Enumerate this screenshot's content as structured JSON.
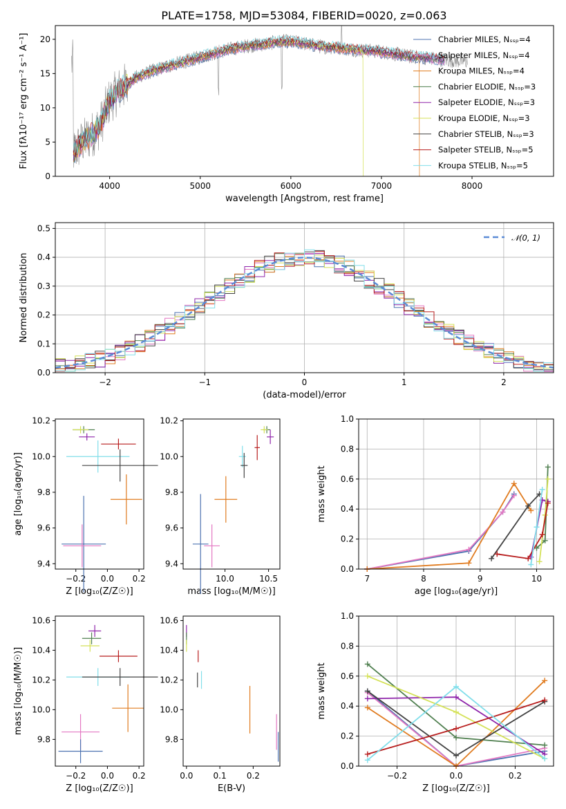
{
  "chart_data": [
    {
      "type": "line",
      "title": "PLATE=1758, MJD=53084, FIBERID=0020, z=0.063",
      "xlabel": "wavelength [Angstrom, rest frame]",
      "ylabel": "Flux [fλ10⁻¹⁷ erg cm⁻² s⁻¹ A⁻¹]",
      "xlim": [
        3400,
        8900
      ],
      "ylim": [
        0,
        22
      ],
      "xticks": [
        4000,
        5000,
        6000,
        7000,
        8000
      ],
      "yticks": [
        0,
        5,
        10,
        15,
        20
      ],
      "legend_position": "top-right",
      "continuum": {
        "x": [
          3600,
          3700,
          3800,
          3900,
          3950,
          4000,
          4100,
          4200,
          4300,
          4400,
          4500,
          4700,
          4900,
          5100,
          5300,
          5500,
          5700,
          5900,
          6100,
          6300,
          6500,
          6700,
          6900,
          7100,
          7300,
          7500,
          7700,
          7900,
          8100,
          8300,
          8500
        ],
        "y": [
          3.5,
          5.0,
          6.0,
          7.5,
          9.5,
          11.0,
          12.5,
          13.5,
          14.5,
          15.0,
          15.5,
          16.3,
          17.0,
          17.8,
          18.5,
          19.0,
          19.3,
          19.7,
          19.5,
          19.0,
          18.8,
          18.5,
          18.3,
          18.0,
          17.5,
          17.3,
          17.0,
          16.8,
          16.5,
          16.3,
          16.5
        ]
      },
      "series": [
        {
          "name": "Chabrier MILES, Nₛₛₚ=4",
          "color": "#4c72b0"
        },
        {
          "name": "Salpeter MILES, Nₛₛₚ=4",
          "color": "#e377c2"
        },
        {
          "name": "Kroupa MILES, Nₛₛₚ=4",
          "color": "#e07b1f"
        },
        {
          "name": "Chabrier ELODIE, Nₛₛₚ=3",
          "color": "#4f7f4f"
        },
        {
          "name": "Salpeter ELODIE, Nₛₛₚ=3",
          "color": "#8e24aa"
        },
        {
          "name": "Kroupa ELODIE, Nₛₛₚ=3",
          "color": "#d4e157"
        },
        {
          "name": "Chabrier STELIB, Nₛₛₚ=3",
          "color": "#424242"
        },
        {
          "name": "Salpeter STELIB, Nₛₛₚ=5",
          "color": "#b71c1c"
        },
        {
          "name": "Kroupa STELIB, Nₛₛₚ=5",
          "color": "#80deea"
        }
      ]
    },
    {
      "type": "line",
      "xlabel": "(data-model)/error",
      "ylabel": "Normed distribution",
      "xlim": [
        -2.5,
        2.5
      ],
      "ylim": [
        0,
        0.52
      ],
      "xticks": [
        -2,
        -1,
        0,
        1,
        2
      ],
      "yticks": [
        0.0,
        0.1,
        0.2,
        0.3,
        0.4,
        0.5
      ],
      "grid": true,
      "legend": "𝒩(0, 1)",
      "legend_position": "top-right",
      "gaussian": {
        "mean": 0,
        "sigma": 1,
        "color": "#5b8bd6"
      }
    },
    {
      "type": "scatter",
      "xlabel": "Z [log₁₀(Z/Z☉)]",
      "ylabel": "age  [log₁₀(age/yr)]",
      "xlim": [
        -0.33,
        0.23
      ],
      "ylim": [
        9.37,
        10.21
      ],
      "xticks": [
        -0.2,
        0.0,
        0.2
      ],
      "yticks": [
        9.4,
        9.6,
        9.8,
        10.0,
        10.2
      ],
      "points": [
        {
          "x": -0.15,
          "y": 10.15,
          "xerr": 0.07,
          "yerr": 0.02,
          "c": "#4f7f4f"
        },
        {
          "x": -0.17,
          "y": 10.15,
          "xerr": 0.05,
          "yerr": 0.02,
          "c": "#d4e157"
        },
        {
          "x": -0.13,
          "y": 10.11,
          "xerr": 0.05,
          "yerr": 0.02,
          "c": "#8e24aa"
        },
        {
          "x": 0.07,
          "y": 10.07,
          "xerr": 0.11,
          "yerr": 0.03,
          "c": "#b71c1c"
        },
        {
          "x": -0.06,
          "y": 10.0,
          "xerr": 0.2,
          "yerr": 0.09,
          "c": "#80deea"
        },
        {
          "x": 0.08,
          "y": 9.95,
          "xerr": 0.24,
          "yerr": 0.09,
          "c": "#424242"
        },
        {
          "x": 0.12,
          "y": 9.76,
          "xerr": 0.1,
          "yerr": 0.14,
          "c": "#e07b1f"
        },
        {
          "x": -0.15,
          "y": 9.51,
          "xerr": 0.14,
          "yerr": 0.27,
          "c": "#4c72b0"
        },
        {
          "x": -0.16,
          "y": 9.5,
          "xerr": 0.12,
          "yerr": 0.12,
          "c": "#e377c2"
        }
      ]
    },
    {
      "type": "scatter",
      "xlabel": "mass [log₁₀(M/M☉)]",
      "xlim": [
        9.52,
        10.63
      ],
      "ylim": [
        9.37,
        10.21
      ],
      "xticks": [
        10.0,
        10.5
      ],
      "yticks": [
        9.4,
        9.6,
        9.8,
        10.0,
        10.2
      ],
      "points": [
        {
          "x": 10.48,
          "y": 10.15,
          "xerr": 0.04,
          "yerr": 0.02,
          "c": "#4f7f4f"
        },
        {
          "x": 10.45,
          "y": 10.15,
          "xerr": 0.04,
          "yerr": 0.02,
          "c": "#d4e157"
        },
        {
          "x": 10.52,
          "y": 10.11,
          "xerr": 0.04,
          "yerr": 0.04,
          "c": "#8e24aa"
        },
        {
          "x": 10.37,
          "y": 10.05,
          "xerr": 0.03,
          "yerr": 0.07,
          "c": "#b71c1c"
        },
        {
          "x": 10.2,
          "y": 10.0,
          "xerr": 0.04,
          "yerr": 0.06,
          "c": "#80deea"
        },
        {
          "x": 10.22,
          "y": 9.95,
          "xerr": 0.04,
          "yerr": 0.07,
          "c": "#424242"
        },
        {
          "x": 10.01,
          "y": 9.76,
          "xerr": 0.13,
          "yerr": 0.13,
          "c": "#e07b1f"
        },
        {
          "x": 9.72,
          "y": 9.51,
          "xerr": 0.09,
          "yerr": 0.28,
          "c": "#4c72b0"
        },
        {
          "x": 9.85,
          "y": 9.5,
          "xerr": 0.09,
          "yerr": 0.12,
          "c": "#e377c2"
        }
      ]
    },
    {
      "type": "line",
      "xlabel": "age  [log₁₀(age/yr)]",
      "ylabel": "mass weight",
      "xlim": [
        6.85,
        10.3
      ],
      "ylim": [
        0,
        1
      ],
      "xticks": [
        7,
        8,
        9,
        10
      ],
      "yticks": [
        0.0,
        0.2,
        0.4,
        0.6,
        0.8,
        1.0
      ],
      "grid": true,
      "series": [
        {
          "c": "#4c72b0",
          "x": [
            7.0,
            8.8,
            9.4,
            9.6
          ],
          "y": [
            0.0,
            0.12,
            0.38,
            0.5
          ]
        },
        {
          "c": "#e377c2",
          "x": [
            7.0,
            8.8,
            9.4,
            9.6
          ],
          "y": [
            0.0,
            0.13,
            0.38,
            0.49
          ]
        },
        {
          "c": "#e07b1f",
          "x": [
            7.0,
            8.8,
            9.6,
            9.9
          ],
          "y": [
            0.0,
            0.04,
            0.57,
            0.39
          ]
        },
        {
          "c": "#4f7f4f",
          "x": [
            10.0,
            10.15,
            10.2
          ],
          "y": [
            0.14,
            0.19,
            0.68
          ]
        },
        {
          "c": "#8e24aa",
          "x": [
            9.9,
            10.1,
            10.2
          ],
          "y": [
            0.08,
            0.46,
            0.45
          ]
        },
        {
          "c": "#d4e157",
          "x": [
            10.05,
            10.15,
            10.2
          ],
          "y": [
            0.05,
            0.36,
            0.6
          ]
        },
        {
          "c": "#424242",
          "x": [
            9.2,
            9.85,
            10.05
          ],
          "y": [
            0.07,
            0.42,
            0.5
          ]
        },
        {
          "c": "#b71c1c",
          "x": [
            9.3,
            9.85,
            10.1,
            10.2
          ],
          "y": [
            0.1,
            0.07,
            0.23,
            0.44
          ]
        },
        {
          "c": "#80deea",
          "x": [
            9.9,
            10.0,
            10.1
          ],
          "y": [
            0.03,
            0.28,
            0.53
          ]
        }
      ]
    },
    {
      "type": "scatter",
      "xlabel": "Z [log₁₀(Z/Z☉)]",
      "ylabel": "mass [log₁₀(M/M☉)]",
      "xlim": [
        -0.33,
        0.23
      ],
      "ylim": [
        9.62,
        10.63
      ],
      "xticks": [
        -0.2,
        0.0,
        0.2
      ],
      "yticks": [
        9.8,
        10.0,
        10.2,
        10.4,
        10.6
      ],
      "points": [
        {
          "x": -0.08,
          "y": 10.53,
          "xerr": 0.04,
          "yerr": 0.04,
          "c": "#8e24aa"
        },
        {
          "x": -0.1,
          "y": 10.48,
          "xerr": 0.06,
          "yerr": 0.04,
          "c": "#4f7f4f"
        },
        {
          "x": -0.11,
          "y": 10.43,
          "xerr": 0.06,
          "yerr": 0.04,
          "c": "#d4e157"
        },
        {
          "x": 0.07,
          "y": 10.36,
          "xerr": 0.12,
          "yerr": 0.04,
          "c": "#b71c1c"
        },
        {
          "x": -0.06,
          "y": 10.22,
          "xerr": 0.2,
          "yerr": 0.06,
          "c": "#80deea"
        },
        {
          "x": 0.08,
          "y": 10.22,
          "xerr": 0.24,
          "yerr": 0.06,
          "c": "#424242"
        },
        {
          "x": 0.13,
          "y": 10.01,
          "xerr": 0.1,
          "yerr": 0.16,
          "c": "#e07b1f"
        },
        {
          "x": -0.17,
          "y": 9.85,
          "xerr": 0.12,
          "yerr": 0.12,
          "c": "#e377c2"
        },
        {
          "x": -0.17,
          "y": 9.72,
          "xerr": 0.14,
          "yerr": 0.08,
          "c": "#4c72b0"
        }
      ]
    },
    {
      "type": "scatter",
      "xlabel": "E(B-V)",
      "xlim": [
        -0.01,
        0.28
      ],
      "ylim": [
        9.62,
        10.63
      ],
      "xticks": [
        0.0,
        0.1,
        0.2
      ],
      "yticks": [
        9.8,
        10.0,
        10.2,
        10.4,
        10.6
      ],
      "points": [
        {
          "x": 0.0,
          "y": 10.53,
          "xerr": 0.0,
          "yerr": 0.04,
          "c": "#8e24aa"
        },
        {
          "x": 0.0,
          "y": 10.48,
          "xerr": 0.0,
          "yerr": 0.04,
          "c": "#4f7f4f"
        },
        {
          "x": 0.0,
          "y": 10.43,
          "xerr": 0.0,
          "yerr": 0.04,
          "c": "#d4e157"
        },
        {
          "x": 0.035,
          "y": 10.36,
          "xerr": 0.0,
          "yerr": 0.04,
          "c": "#b71c1c"
        },
        {
          "x": 0.045,
          "y": 10.2,
          "xerr": 0.0,
          "yerr": 0.06,
          "c": "#80deea"
        },
        {
          "x": 0.033,
          "y": 10.2,
          "xerr": 0.0,
          "yerr": 0.05,
          "c": "#424242"
        },
        {
          "x": 0.19,
          "y": 10.0,
          "xerr": 0.0,
          "yerr": 0.16,
          "c": "#e07b1f"
        },
        {
          "x": 0.27,
          "y": 9.85,
          "xerr": 0.0,
          "yerr": 0.12,
          "c": "#e377c2"
        },
        {
          "x": 0.275,
          "y": 9.75,
          "xerr": 0.0,
          "yerr": 0.1,
          "c": "#4c72b0"
        }
      ]
    },
    {
      "type": "line",
      "xlabel": "Z [log₁₀(Z/Z☉)]",
      "ylabel": "mass weight",
      "xlim": [
        -0.33,
        0.33
      ],
      "ylim": [
        0,
        1
      ],
      "xticks": [
        -0.2,
        0.0,
        0.2
      ],
      "yticks": [
        0.0,
        0.2,
        0.4,
        0.6,
        0.8,
        1.0
      ],
      "grid": true,
      "series": [
        {
          "c": "#4c72b0",
          "x": [
            -0.3,
            0.0,
            0.3
          ],
          "y": [
            0.5,
            0.0,
            0.1
          ]
        },
        {
          "c": "#e377c2",
          "x": [
            -0.3,
            0.0,
            0.3
          ],
          "y": [
            0.49,
            0.0,
            0.12
          ]
        },
        {
          "c": "#e07b1f",
          "x": [
            -0.3,
            0.0,
            0.3
          ],
          "y": [
            0.39,
            0.0,
            0.57
          ]
        },
        {
          "c": "#4f7f4f",
          "x": [
            -0.3,
            0.0,
            0.3
          ],
          "y": [
            0.68,
            0.19,
            0.14
          ]
        },
        {
          "c": "#8e24aa",
          "x": [
            -0.3,
            0.0,
            0.3
          ],
          "y": [
            0.45,
            0.46,
            0.08
          ]
        },
        {
          "c": "#d4e157",
          "x": [
            -0.3,
            0.0,
            0.3
          ],
          "y": [
            0.6,
            0.36,
            0.05
          ]
        },
        {
          "c": "#424242",
          "x": [
            -0.3,
            0.0,
            0.3
          ],
          "y": [
            0.5,
            0.07,
            0.43
          ]
        },
        {
          "c": "#b71c1c",
          "x": [
            -0.3,
            0.0,
            0.3
          ],
          "y": [
            0.08,
            0.25,
            0.44
          ]
        },
        {
          "c": "#80deea",
          "x": [
            -0.3,
            0.0,
            0.3
          ],
          "y": [
            0.04,
            0.53,
            0.05
          ]
        }
      ]
    }
  ]
}
